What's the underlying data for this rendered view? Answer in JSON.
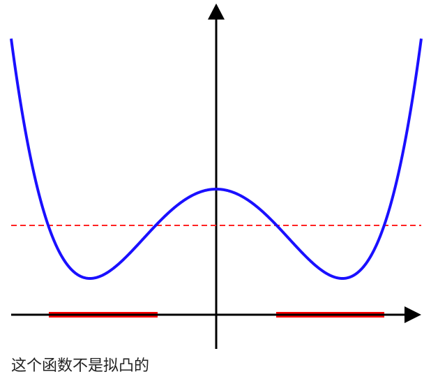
{
  "caption": "这个函数不是拟凸的",
  "colors": {
    "curve": "#1a10ff",
    "threshold": "#ff2222",
    "interval": "#ff0000",
    "axis": "#000000"
  },
  "icons": {
    "x_axis_arrow": "arrow-right-icon",
    "y_axis_arrow": "arrow-up-icon"
  }
}
